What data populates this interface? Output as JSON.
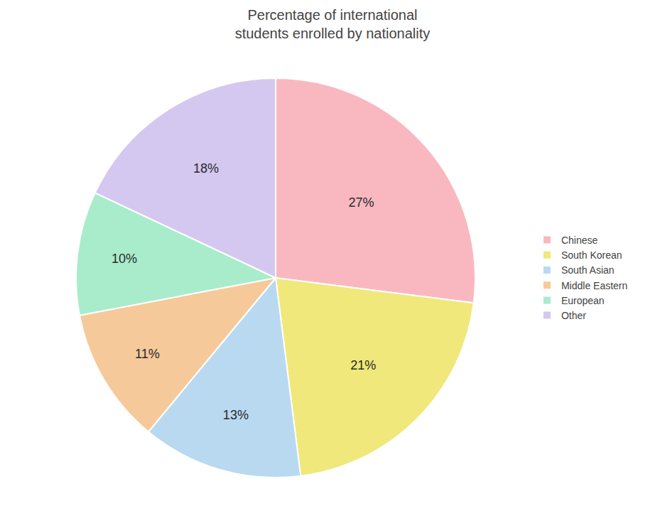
{
  "chart_data": {
    "type": "pie",
    "title": "Percentage of international\nstudents enrolled by nationality",
    "categories": [
      "Chinese",
      "South Korean",
      "South Asian",
      "Middle Eastern",
      "European",
      "Other"
    ],
    "values": [
      27,
      21,
      13,
      11,
      10,
      18
    ],
    "value_labels": [
      "27%",
      "21%",
      "13%",
      "11%",
      "10%",
      "18%"
    ],
    "colors": [
      "#F9B8C0",
      "#F0E87A",
      "#B8D9F0",
      "#F5C99A",
      "#A8ECCC",
      "#D4C8F0"
    ],
    "data_labels": true,
    "legend": "right"
  }
}
